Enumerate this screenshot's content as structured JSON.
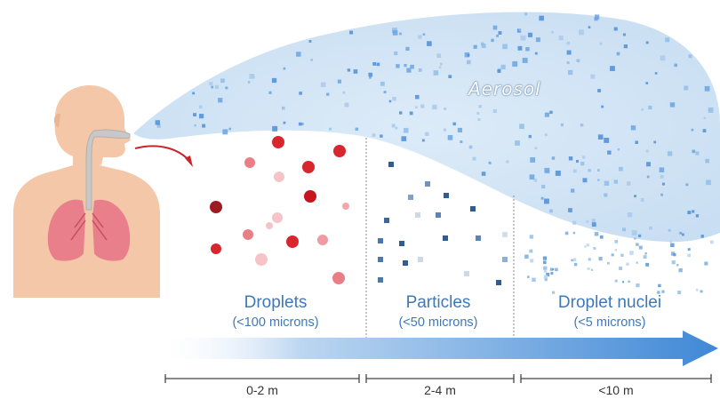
{
  "aerosol_label": "Aerosol",
  "categories": [
    {
      "name": "Droplets",
      "size": "(<100 microns)"
    },
    {
      "name": "Particles",
      "size": "(<50 microns)"
    },
    {
      "name": "Droplet nuclei",
      "size": "(<5 microns)"
    }
  ],
  "distances": [
    "0-2 m",
    "2-4 m",
    "<10 m"
  ],
  "colors": {
    "cloud": "#d3e5f5",
    "droplet_red": "#d8262f",
    "particle_blue": "#2f5c93",
    "nuclei_blue": "#7fb2e0",
    "arrow_blue": "#3f88d6",
    "skin": "#f3c7a8",
    "lungs": "#e87f8a"
  }
}
